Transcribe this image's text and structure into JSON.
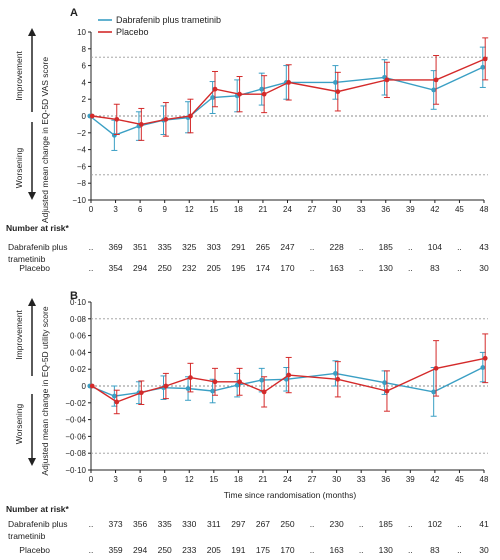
{
  "colors": {
    "dt": "#3a9fc4",
    "placebo": "#d42a2a",
    "axis": "#222222",
    "ref": "#999999"
  },
  "x_ticks": [
    0,
    3,
    6,
    9,
    12,
    15,
    18,
    21,
    24,
    27,
    30,
    33,
    36,
    39,
    42,
    45,
    48
  ],
  "panelA": {
    "label": "A",
    "ylabel": "Adjusted mean change in EQ-5D VAS score",
    "improvement": "Improvement",
    "worsening": "Worsening",
    "y_ticks": [
      "10",
      "8",
      "6",
      "4",
      "2",
      "0",
      "−2",
      "−4",
      "−6",
      "−8",
      "−10"
    ],
    "legend": [
      "Dabrafenib plus trametinib",
      "Placebo"
    ],
    "risk_header": "Number at risk*",
    "risk_rows": [
      {
        "label1": "Dabrafenib plus",
        "label2": "trametinib",
        "values": [
          "..",
          "369",
          "351",
          "335",
          "325",
          "303",
          "291",
          "265",
          "247",
          "..",
          "228",
          "..",
          "185",
          "..",
          "104",
          "..",
          "43"
        ]
      },
      {
        "label1": "Placebo",
        "label2": "",
        "values": [
          "..",
          "354",
          "294",
          "250",
          "232",
          "205",
          "195",
          "174",
          "170",
          "..",
          "163",
          "..",
          "130",
          "..",
          "83",
          "..",
          "30"
        ]
      }
    ]
  },
  "panelB": {
    "label": "B",
    "ylabel": "Adjusted mean change in EQ-5D utility score",
    "improvement": "Improvement",
    "worsening": "Worsening",
    "y_ticks": [
      "0·10",
      "0·08",
      "0·06",
      "0·04",
      "0·02",
      "0",
      "−0·02",
      "−0·04",
      "−0·06",
      "−0·08",
      "−0·10"
    ],
    "xlabel": "Time since randomisation (months)",
    "risk_header": "Number at risk*",
    "risk_rows": [
      {
        "label1": "Dabrafenib plus",
        "label2": "trametinib",
        "values": [
          "..",
          "373",
          "356",
          "335",
          "330",
          "311",
          "297",
          "267",
          "250",
          "..",
          "230",
          "..",
          "185",
          "..",
          "102",
          "..",
          "41"
        ]
      },
      {
        "label1": "Placebo",
        "label2": "",
        "values": [
          "..",
          "359",
          "294",
          "250",
          "233",
          "205",
          "191",
          "175",
          "170",
          "..",
          "163",
          "..",
          "130",
          "..",
          "83",
          "..",
          "30"
        ]
      }
    ]
  },
  "chart_data": [
    {
      "type": "line",
      "title": "A",
      "xlabel": "",
      "ylabel": "Adjusted mean change in EQ-5D VAS score",
      "xlim": [
        0,
        48
      ],
      "ylim": [
        -10,
        10
      ],
      "reference_lines": [
        7,
        -7
      ],
      "legend": "top-left",
      "series": [
        {
          "name": "Dabrafenib plus trametinib",
          "x": [
            0,
            3,
            6,
            9,
            12,
            15,
            18,
            21,
            24,
            30,
            36,
            42,
            48
          ],
          "y": [
            0,
            -2.3,
            -1.2,
            -0.5,
            -0.2,
            2.2,
            2.4,
            3.2,
            4.0,
            4.0,
            4.6,
            3.1,
            5.8
          ],
          "lo": [
            0,
            -4.1,
            -2.9,
            -2.2,
            -2.0,
            0.3,
            0.5,
            1.3,
            2.0,
            2.0,
            2.5,
            0.8,
            3.4
          ],
          "hi": [
            0,
            -0.5,
            0.5,
            1.2,
            1.7,
            4.1,
            4.3,
            5.1,
            6.0,
            6.0,
            6.7,
            5.4,
            8.2
          ]
        },
        {
          "name": "Placebo",
          "x": [
            0,
            3,
            6,
            9,
            12,
            15,
            18,
            21,
            24,
            30,
            36,
            42,
            48
          ],
          "y": [
            0,
            -0.4,
            -1.0,
            -0.4,
            0.0,
            3.2,
            2.6,
            2.6,
            4.0,
            2.9,
            4.3,
            4.3,
            6.8
          ],
          "lo": [
            0,
            -2.2,
            -2.9,
            -2.4,
            -2.0,
            1.1,
            0.5,
            0.4,
            1.9,
            0.6,
            2.2,
            1.4,
            4.3
          ],
          "hi": [
            0,
            1.4,
            0.9,
            1.6,
            2.0,
            5.3,
            4.7,
            4.8,
            6.1,
            5.2,
            6.4,
            7.2,
            9.3
          ]
        }
      ]
    },
    {
      "type": "line",
      "title": "B",
      "xlabel": "Time since randomisation (months)",
      "ylabel": "Adjusted mean change in EQ-5D utility score",
      "xlim": [
        0,
        48
      ],
      "ylim": [
        -0.1,
        0.1
      ],
      "reference_lines": [
        0.08,
        -0.08
      ],
      "series": [
        {
          "name": "Dabrafenib plus trametinib",
          "x": [
            0,
            3,
            6,
            9,
            12,
            15,
            18,
            21,
            24,
            30,
            36,
            42,
            48
          ],
          "y": [
            0,
            -0.012,
            -0.008,
            -0.002,
            -0.003,
            -0.006,
            0.001,
            0.007,
            0.008,
            0.015,
            0.004,
            -0.007,
            0.022
          ],
          "lo": [
            0,
            -0.024,
            -0.021,
            -0.016,
            -0.017,
            -0.02,
            -0.013,
            -0.007,
            -0.006,
            0.0,
            -0.01,
            -0.036,
            0.005
          ],
          "hi": [
            0,
            0.0,
            0.005,
            0.012,
            0.011,
            0.008,
            0.015,
            0.021,
            0.022,
            0.03,
            0.018,
            0.022,
            0.04
          ]
        },
        {
          "name": "Placebo",
          "x": [
            0,
            3,
            6,
            9,
            12,
            15,
            18,
            21,
            24,
            30,
            36,
            42,
            48
          ],
          "y": [
            0,
            -0.019,
            -0.008,
            0.0,
            0.01,
            0.005,
            0.005,
            -0.007,
            0.013,
            0.008,
            -0.006,
            0.021,
            0.033
          ],
          "lo": [
            0,
            -0.033,
            -0.022,
            -0.015,
            -0.007,
            -0.011,
            -0.011,
            -0.025,
            -0.008,
            -0.013,
            -0.03,
            -0.012,
            0.004
          ],
          "hi": [
            0,
            -0.005,
            0.006,
            0.015,
            0.027,
            0.021,
            0.021,
            0.011,
            0.034,
            0.029,
            0.018,
            0.054,
            0.062
          ]
        }
      ]
    }
  ]
}
